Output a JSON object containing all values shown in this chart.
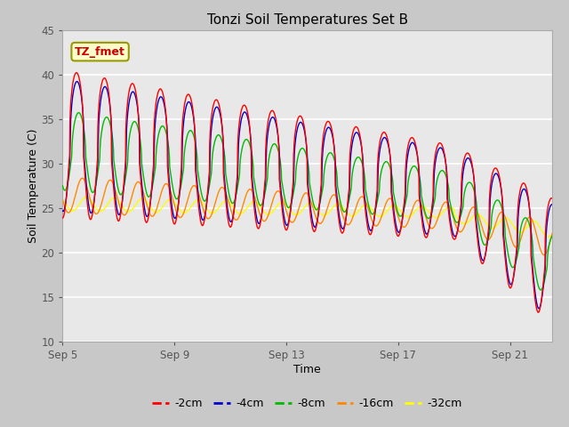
{
  "title": "Tonzi Soil Temperatures Set B",
  "xlabel": "Time",
  "ylabel": "Soil Temperature (C)",
  "ylim": [
    10,
    45
  ],
  "xlim_days": [
    0,
    17.5
  ],
  "x_ticks_days": [
    0,
    4,
    8,
    12,
    16
  ],
  "x_tick_labels": [
    "Sep 5",
    "Sep 9",
    "Sep 13",
    "Sep 17",
    "Sep 21"
  ],
  "y_ticks": [
    10,
    15,
    20,
    25,
    30,
    35,
    40,
    45
  ],
  "colors": {
    "-2cm": "#ff0000",
    "-4cm": "#0000cc",
    "-8cm": "#00bb00",
    "-16cm": "#ff8800",
    "-32cm": "#ffff00"
  },
  "legend_label": "TZ_fmet",
  "fig_bg": "#c8c8c8",
  "plot_bg": "#e8e8e8",
  "grid_color": "#ffffff",
  "days": 17.5,
  "dt": 0.01
}
